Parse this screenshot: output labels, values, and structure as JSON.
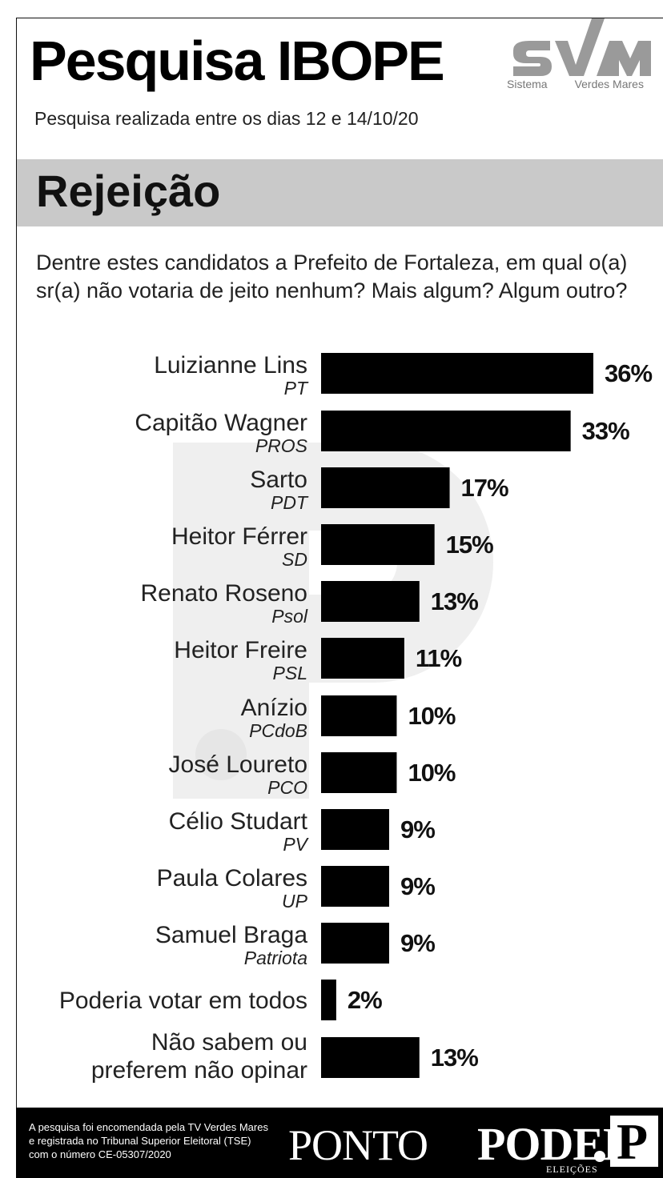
{
  "header": {
    "title": "Pesquisa IBOPE",
    "subtitle": "Pesquisa realizada entre os dias 12 e 14/10/20",
    "logo": {
      "mark": "SVM",
      "word1": "Sistema",
      "word2": "Verdes Mares"
    }
  },
  "section": {
    "title": "Rejeição",
    "question": "Dentre estes candidatos a Prefeito de Fortaleza, em qual o(a) sr(a) não votaria de jeito nenhum? Mais algum? Algum outro?"
  },
  "chart_data": {
    "type": "bar",
    "orientation": "horizontal",
    "categories": [
      {
        "name": "Luizianne Lins",
        "party": "PT"
      },
      {
        "name": "Capitão Wagner",
        "party": "PROS"
      },
      {
        "name": "Sarto",
        "party": "PDT"
      },
      {
        "name": "Heitor Férrer",
        "party": "SD"
      },
      {
        "name": "Renato Roseno",
        "party": "Psol"
      },
      {
        "name": "Heitor Freire",
        "party": "PSL"
      },
      {
        "name": "Anízio",
        "party": "PCdoB"
      },
      {
        "name": "José Loureto",
        "party": "PCO"
      },
      {
        "name": "Célio Studart",
        "party": "PV"
      },
      {
        "name": "Paula Colares",
        "party": "UP"
      },
      {
        "name": "Samuel Braga",
        "party": "Patriota"
      },
      {
        "name": "Poderia votar em todos",
        "party": ""
      },
      {
        "name": "Não sabem ou preferem não opinar",
        "name_lines": [
          "Não sabem ou",
          "preferem não opinar"
        ],
        "party": ""
      }
    ],
    "values": [
      36,
      33,
      17,
      15,
      13,
      11,
      10,
      10,
      9,
      9,
      9,
      2,
      13
    ],
    "value_labels": [
      "36%",
      "33%",
      "17%",
      "15%",
      "13%",
      "11%",
      "10%",
      "10%",
      "9%",
      "9%",
      "9%",
      "2%",
      "13%"
    ],
    "xlim": [
      0,
      36
    ],
    "bar_color": "#000000",
    "grid": false,
    "legend": "none"
  },
  "footer": {
    "note": "A pesquisa foi encomendada pela TV Verdes Mares e registrada no Tribunal Superior Eleitoral (TSE) com o número CE-05307/2020",
    "brand_part1": "PONTO",
    "brand_part2": "PODER",
    "brand_sub": "ELEIÇÕES",
    "brand_mark": "P"
  }
}
